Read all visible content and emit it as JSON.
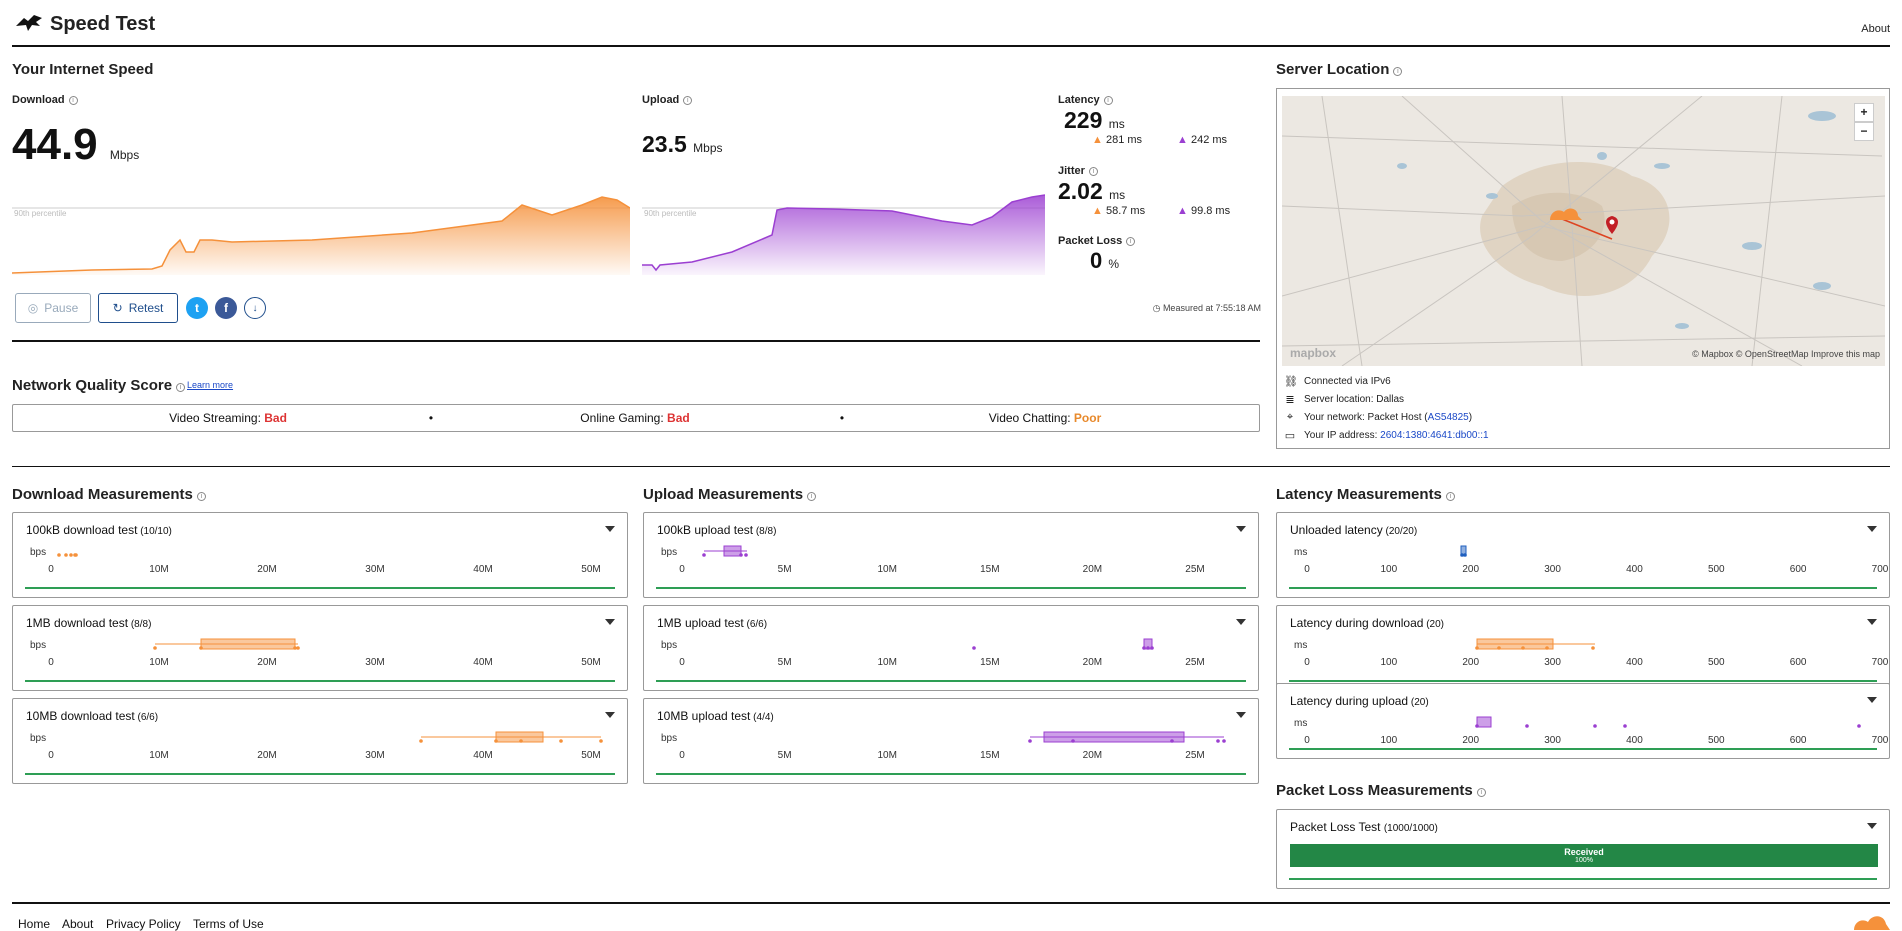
{
  "header": {
    "title": "Speed Test",
    "about": "About"
  },
  "speed": {
    "section_title": "Your Internet Speed",
    "download": {
      "label": "Download",
      "value": "44.9",
      "unit": "Mbps",
      "percentile": "90th percentile"
    },
    "upload": {
      "label": "Upload",
      "value": "23.5",
      "unit": "Mbps",
      "percentile": "90th percentile"
    },
    "latency": {
      "label": "Latency",
      "value": "229",
      "unit": "ms",
      "down": "281 ms",
      "up": "242 ms"
    },
    "jitter": {
      "label": "Jitter",
      "value": "2.02",
      "unit": "ms",
      "down": "58.7 ms",
      "up": "99.8 ms"
    },
    "packet_loss": {
      "label": "Packet Loss",
      "value": "0",
      "unit": "%"
    },
    "pause": "Pause",
    "retest": "Retest",
    "measured_at": "Measured at 7:55:18 AM",
    "colors": {
      "download": "#f5913b",
      "upload": "#9b3fd1"
    }
  },
  "server": {
    "title": "Server Location",
    "zoom_in": "+",
    "zoom_out": "−",
    "map_brand": "mapbox",
    "attribution": "© Mapbox © OpenStreetMap  Improve this map",
    "connected": "Connected via IPv6",
    "location": "Server location: Dallas",
    "network_prefix": "Your network: Packet Host (",
    "network_link": "AS54825",
    "network_suffix": ")",
    "ip_prefix": "Your IP address: ",
    "ip_link": "2604:1380:4641:db00::1"
  },
  "nqs": {
    "title": "Network Quality Score",
    "learn_more": "Learn more",
    "items": [
      {
        "label": "Video Streaming:",
        "value": "Bad"
      },
      {
        "label": "Online Gaming:",
        "value": "Bad"
      },
      {
        "label": "Video Chatting:",
        "value": "Poor"
      }
    ],
    "sep": "•"
  },
  "download_measurements": {
    "title": "Download Measurements",
    "unit": "bps",
    "ticks": [
      "0",
      "10M",
      "20M",
      "30M",
      "40M",
      "50M"
    ],
    "tests": [
      {
        "name": "100kB download test",
        "count": "(10/10)"
      },
      {
        "name": "1MB download test",
        "count": "(8/8)"
      },
      {
        "name": "10MB download test",
        "count": "(6/6)"
      }
    ]
  },
  "upload_measurements": {
    "title": "Upload Measurements",
    "unit": "bps",
    "ticks": [
      "0",
      "5M",
      "10M",
      "15M",
      "20M",
      "25M"
    ],
    "tests": [
      {
        "name": "100kB upload test",
        "count": "(8/8)"
      },
      {
        "name": "1MB upload test",
        "count": "(6/6)"
      },
      {
        "name": "10MB upload test",
        "count": "(4/4)"
      }
    ]
  },
  "latency_measurements": {
    "title": "Latency Measurements",
    "unit": "ms",
    "ticks": [
      "0",
      "100",
      "200",
      "300",
      "400",
      "500",
      "600",
      "700"
    ],
    "tests": [
      {
        "name": "Unloaded latency",
        "count": "(20/20)"
      },
      {
        "name": "Latency during download",
        "count": "(20)"
      },
      {
        "name": "Latency during upload",
        "count": "(20)"
      }
    ]
  },
  "packet_loss_measurements": {
    "title": "Packet Loss Measurements",
    "test_name": "Packet Loss Test",
    "count": "(1000/1000)",
    "received_label": "Received",
    "received_pct": "100%",
    "received_fraction": 1.0
  },
  "footer": {
    "home": "Home",
    "about": "About",
    "privacy": "Privacy Policy",
    "terms": "Terms of Use"
  }
}
